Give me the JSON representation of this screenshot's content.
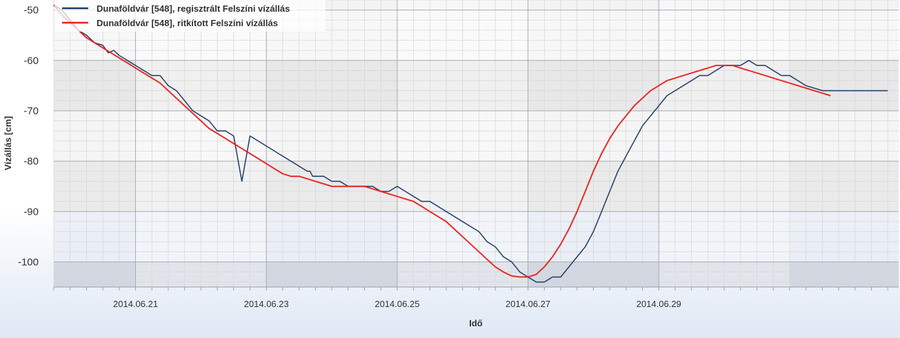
{
  "chart_data": {
    "type": "line",
    "xlabel": "Idő",
    "ylabel": "Vízállás [cm]",
    "xlim": [
      "2014.06.19 18:00",
      "2014.06.30 16:00"
    ],
    "ylim": [
      -105,
      -48
    ],
    "x_ticks": [
      "2014.06.21",
      "2014.06.23",
      "2014.06.25",
      "2014.06.27",
      "2014.06.29"
    ],
    "y_ticks": [
      -50,
      -60,
      -70,
      -80,
      -90,
      -100
    ],
    "grid": true,
    "legend_position": "top-left",
    "x_unit": "hours since 2014.06.20 00:00",
    "series": [
      {
        "name": "Dunaföldvár [548], regisztrált Felszíni vízállás",
        "color": "#1f3a66",
        "x": [
          -6,
          -3,
          0,
          3,
          6,
          9,
          12,
          14,
          16,
          18,
          21,
          24,
          27,
          30,
          33,
          36,
          39,
          42,
          45,
          48,
          51,
          54,
          57,
          60,
          63,
          66,
          69,
          72,
          75,
          78,
          81,
          84,
          87,
          88,
          89,
          90,
          93,
          96,
          99,
          102,
          105,
          108,
          111,
          114,
          117,
          120,
          123,
          126,
          129,
          132,
          135,
          138,
          141,
          144,
          147,
          150,
          153,
          156,
          159,
          162,
          165,
          168,
          171,
          174,
          177,
          180,
          183,
          186,
          189,
          192,
          195,
          198,
          201,
          204,
          207,
          210,
          213,
          216,
          219,
          222,
          225,
          228,
          231,
          234,
          237,
          240,
          243,
          246,
          249,
          252,
          255,
          258,
          261,
          264,
          267,
          270,
          273,
          276,
          279,
          282,
          285,
          288,
          291,
          294,
          297,
          300
        ],
        "values": [
          -49,
          -50,
          -52,
          -54,
          -55,
          -56.5,
          -57,
          -58.5,
          -58,
          -59,
          -60,
          -61,
          -62,
          -63,
          -63,
          -65,
          -66,
          -68,
          -70,
          -71,
          -72,
          -74,
          -74,
          -75,
          -84,
          -75,
          -76,
          -77,
          -78,
          -79,
          -80,
          -81,
          -82,
          -82,
          -83,
          -83,
          -83,
          -84,
          -84,
          -85,
          -85,
          -85,
          -85,
          -86,
          -86,
          -85,
          -86,
          -87,
          -88,
          -88,
          -89,
          -90,
          -91,
          -92,
          -93,
          -94,
          -96,
          -97,
          -99,
          -100,
          -102,
          -103,
          -104,
          -104,
          -103,
          -103,
          -101,
          -99,
          -97,
          -94,
          -90,
          -86,
          -82,
          -79,
          -76,
          -73,
          -71,
          -69,
          -67,
          -66,
          -65,
          -64,
          -63,
          -63,
          -62,
          -61,
          -61,
          -61,
          -60,
          -61,
          -61,
          -62,
          -63,
          -63,
          -64,
          -65,
          -65.5,
          -66,
          -66,
          -66,
          -66,
          -66,
          -66,
          -66,
          -66,
          -66
        ],
        "values_note": ""
      },
      {
        "name": "Dunaföldvár [548], ritkított Felszíni vízállás",
        "color": "#e8201e",
        "x": [
          -6,
          -3,
          0,
          3,
          6,
          9,
          12,
          15,
          18,
          21,
          24,
          27,
          30,
          33,
          36,
          39,
          42,
          45,
          48,
          51,
          54,
          57,
          60,
          63,
          66,
          69,
          72,
          75,
          78,
          81,
          84,
          87,
          90,
          93,
          96,
          99,
          102,
          105,
          108,
          111,
          114,
          117,
          120,
          123,
          126,
          129,
          132,
          135,
          138,
          141,
          144,
          147,
          150,
          153,
          156,
          159,
          162,
          165,
          168,
          171,
          174,
          177,
          180,
          183,
          186,
          189,
          192,
          195,
          198,
          201,
          204,
          207,
          210,
          213,
          216,
          219,
          222,
          225,
          228,
          231,
          234,
          237,
          240,
          243,
          246,
          249,
          252,
          255,
          258,
          261,
          264,
          267,
          270,
          273,
          276,
          279
        ],
        "values": [
          -49,
          -51,
          -52.5,
          -54,
          -55.5,
          -56.5,
          -57.5,
          -58.5,
          -59.5,
          -60.5,
          -61.5,
          -62.5,
          -63.5,
          -64.5,
          -66,
          -67.5,
          -69,
          -70.5,
          -72,
          -73.5,
          -74.5,
          -75.5,
          -76.5,
          -77.5,
          -78.5,
          -79.5,
          -80.5,
          -81.5,
          -82.5,
          -83,
          -83,
          -83.5,
          -84,
          -84.5,
          -85,
          -85,
          -85,
          -85,
          -85,
          -85.5,
          -86,
          -86.5,
          -87,
          -87.5,
          -88,
          -89,
          -90,
          -91,
          -92,
          -93.5,
          -95,
          -96.5,
          -98,
          -99.5,
          -101,
          -102,
          -102.8,
          -103,
          -103,
          -102.5,
          -101,
          -99,
          -96.5,
          -93.5,
          -90,
          -86,
          -82,
          -78.5,
          -75.5,
          -73,
          -71,
          -69,
          -67.5,
          -66,
          -65,
          -64,
          -63.5,
          -63,
          -62.5,
          -62,
          -61.5,
          -61,
          -61,
          -61,
          -61.5,
          -62,
          -62.5,
          -63,
          -63.5,
          -64,
          -64.5,
          -65,
          -65.5,
          -66,
          -66.5,
          -67
        ]
      }
    ]
  }
}
